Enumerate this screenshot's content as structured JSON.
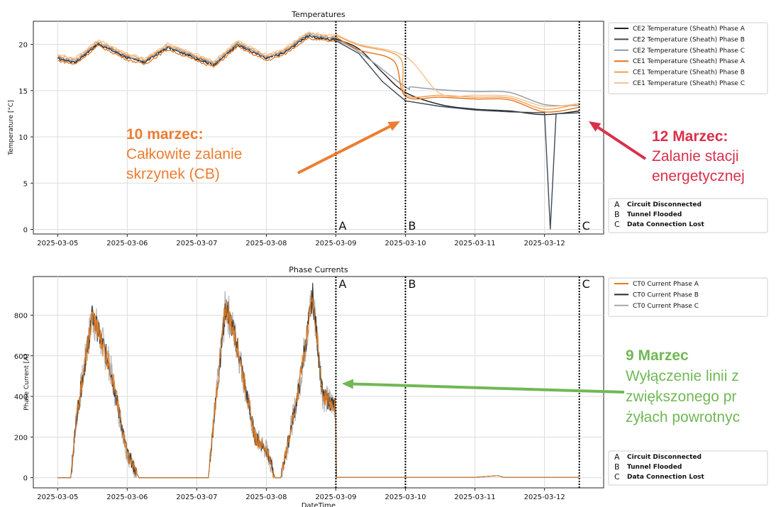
{
  "chart_data": [
    {
      "type": "line",
      "title": "Temperatures",
      "xlabel": "",
      "ylabel": "Temperature [°C]",
      "ylim": [
        -0.5,
        22.5
      ],
      "yticks": [
        0,
        5,
        10,
        15,
        20
      ],
      "xticks": [
        "2025-03-05",
        "2025-03-06",
        "2025-03-07",
        "2025-03-08",
        "2025-03-09",
        "2025-03-10",
        "2025-03-11",
        "2025-03-12"
      ],
      "grid": true,
      "legend_position": "right",
      "series": [
        {
          "name": "CE2 Temperature (Sheath) Phase A",
          "color": "#1f1f1f",
          "x": [
            "2025-03-09",
            "2025-03-09 08:00",
            "2025-03-09 16:00",
            "2025-03-10",
            "2025-03-10 12:00",
            "2025-03-11",
            "2025-03-11 12:00",
            "2025-03-12",
            "2025-03-12 12:00"
          ],
          "y": [
            20.6,
            19.5,
            17.0,
            14.8,
            13.5,
            13.0,
            12.8,
            12.4,
            12.8
          ]
        },
        {
          "name": "CE2 Temperature (Sheath) Phase B",
          "color": "#3d4a57",
          "x": [
            "2025-03-09",
            "2025-03-09 08:00",
            "2025-03-09 16:00",
            "2025-03-10",
            "2025-03-10 12:00",
            "2025-03-11",
            "2025-03-11 12:00",
            "2025-03-12",
            "2025-03-12 02:00",
            "2025-03-12 04:00",
            "2025-03-12 12:00"
          ],
          "y": [
            20.4,
            19.0,
            16.0,
            13.9,
            13.3,
            12.9,
            12.7,
            12.6,
            0.0,
            12.5,
            12.6
          ]
        },
        {
          "name": "CE2 Temperature (Sheath) Phase C",
          "color": "#8c99a8",
          "x": [
            "2025-03-09",
            "2025-03-09 08:00",
            "2025-03-10",
            "2025-03-10 02:00",
            "2025-03-10 12:00",
            "2025-03-11",
            "2025-03-11 12:00",
            "2025-03-12",
            "2025-03-12 12:00"
          ],
          "y": [
            20.5,
            19.2,
            15.4,
            15.4,
            15.1,
            14.9,
            14.8,
            13.5,
            13.4
          ]
        },
        {
          "name": "CE1 Temperature (Sheath) Phase A",
          "color": "#e8731c",
          "x": [
            "2025-03-09",
            "2025-03-09 08:00",
            "2025-03-09 20:00",
            "2025-03-10",
            "2025-03-10 12:00",
            "2025-03-11",
            "2025-03-11 12:00",
            "2025-03-12",
            "2025-03-12 12:00"
          ],
          "y": [
            20.8,
            19.4,
            18.2,
            14.4,
            14.3,
            14.1,
            14.0,
            12.7,
            13.2
          ]
        },
        {
          "name": "CE1 Temperature (Sheath) Phase B",
          "color": "#f0a050",
          "x": [
            "2025-03-09",
            "2025-03-09 08:00",
            "2025-03-09 22:00",
            "2025-03-10",
            "2025-03-10 12:00",
            "2025-03-11",
            "2025-03-11 12:00",
            "2025-03-12",
            "2025-03-12 12:00"
          ],
          "y": [
            21.0,
            19.9,
            18.6,
            14.6,
            14.5,
            14.3,
            14.2,
            13.0,
            13.6
          ]
        },
        {
          "name": "CE1 Temperature (Sheath) Phase C",
          "color": "#f7c290",
          "x": [
            "2025-03-09",
            "2025-03-09 08:00",
            "2025-03-10",
            "2025-03-10 12:00",
            "2025-03-11",
            "2025-03-11 12:00",
            "2025-03-12",
            "2025-03-12 12:00"
          ],
          "y": [
            21.1,
            20.0,
            18.7,
            14.7,
            14.5,
            14.4,
            13.3,
            13.6
          ]
        }
      ],
      "pre_event": {
        "x": [
          "2025-03-05",
          "2025-03-05 06:00",
          "2025-03-05 14:00",
          "2025-03-06",
          "2025-03-06 06:00",
          "2025-03-06 14:00",
          "2025-03-07",
          "2025-03-07 06:00",
          "2025-03-07 14:00",
          "2025-03-08",
          "2025-03-08 06:00",
          "2025-03-08 14:00",
          "2025-03-09"
        ],
        "y": [
          18.6,
          18.2,
          20.2,
          18.7,
          18.2,
          19.8,
          18.6,
          17.9,
          20.1,
          18.6,
          19.2,
          21.0,
          20.6
        ]
      },
      "events": [
        {
          "x": "2025-03-09",
          "label": "A"
        },
        {
          "x": "2025-03-10",
          "label": "B"
        },
        {
          "x": "2025-03-12 12:00",
          "label": "C"
        }
      ],
      "event_legend": [
        {
          "key": "A",
          "text": "Circuit Disconnected"
        },
        {
          "key": "B",
          "text": "Tunnel Flooded"
        },
        {
          "key": "C",
          "text": "Data Connection Lost"
        }
      ]
    },
    {
      "type": "line",
      "title": "Phase Currents",
      "xlabel": "DateTime",
      "ylabel": "Phase Current [A]",
      "ylim": [
        -50,
        990
      ],
      "yticks": [
        0,
        200,
        400,
        600,
        800
      ],
      "xticks": [
        "2025-03-05",
        "2025-03-06",
        "2025-03-07",
        "2025-03-08",
        "2025-03-09",
        "2025-03-10",
        "2025-03-11",
        "2025-03-12"
      ],
      "grid": true,
      "legend_position": "right",
      "series": [
        {
          "name": "CT0 Current Phase A",
          "color": "#e07b20"
        },
        {
          "name": "CT0 Current Phase B",
          "color": "#2a2a2a"
        },
        {
          "name": "CT0 Current Phase C",
          "color": "#a8a8a8"
        }
      ],
      "envelope": {
        "x": [
          "2025-03-05",
          "2025-03-05 04:30",
          "2025-03-05 06:30",
          "2025-03-05 12:00",
          "2025-03-05 18:00",
          "2025-03-06",
          "2025-03-06 04:00",
          "2025-03-06 06:00",
          "2025-03-06 12:00",
          "2025-03-06 18:00",
          "2025-03-07",
          "2025-03-07 04:00",
          "2025-03-07 06:00",
          "2025-03-07 10:00",
          "2025-03-07 14:00",
          "2025-03-07 20:00",
          "2025-03-08",
          "2025-03-08 03:00",
          "2025-03-08 05:00",
          "2025-03-08 11:00",
          "2025-03-08 16:00",
          "2025-03-08 19:30",
          "2025-03-09",
          "2025-03-09 00:05",
          "2025-03-10",
          "2025-03-11",
          "2025-03-11 08:00",
          "2025-03-11 10:00",
          "2025-03-12",
          "2025-03-12 12:00"
        ],
        "y": [
          0,
          0,
          300,
          800,
          550,
          120,
          0,
          0,
          0,
          0,
          0,
          0,
          300,
          850,
          650,
          200,
          140,
          0,
          0,
          420,
          900,
          400,
          350,
          2,
          2,
          2,
          10,
          2,
          2,
          2
        ]
      },
      "events": [
        {
          "x": "2025-03-09",
          "label": "A"
        },
        {
          "x": "2025-03-10",
          "label": "B"
        },
        {
          "x": "2025-03-12 12:00",
          "label": "C"
        }
      ],
      "event_legend": [
        {
          "key": "A",
          "text": "Circuit Disconnected"
        },
        {
          "key": "B",
          "text": "Tunnel Flooded"
        },
        {
          "key": "C",
          "text": "Data Connection Lost"
        }
      ]
    }
  ],
  "annotations": [
    {
      "id": "b",
      "color": "#ed7d31",
      "lines": [
        "10 marzec:",
        "Całkowite zalanie",
        "skrzynek (CB)"
      ]
    },
    {
      "id": "c",
      "color": "#d9304a",
      "lines": [
        "12 Marzec:",
        "Zalanie stacji",
        "energetycznej"
      ]
    },
    {
      "id": "a",
      "color": "#70b855",
      "lines": [
        "9 Marzec",
        "Wyłączenie linii z",
        "zwiększonego pr",
        "żyłach powrotnyc"
      ]
    }
  ]
}
